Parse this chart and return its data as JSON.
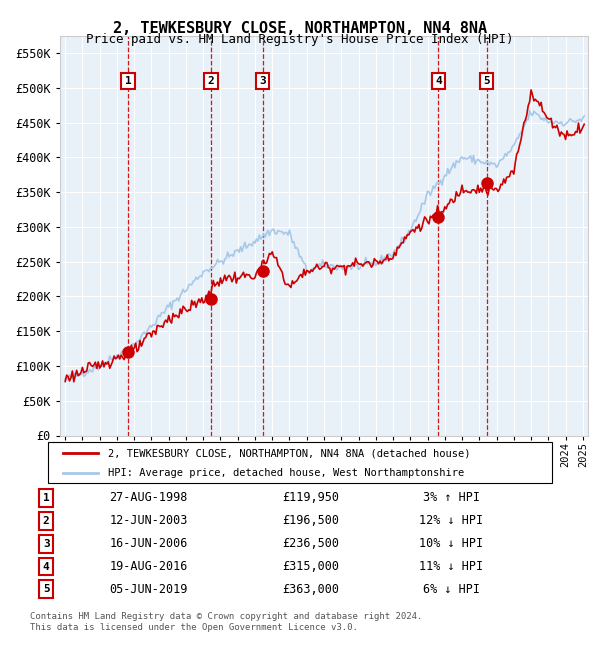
{
  "title": "2, TEWKESBURY CLOSE, NORTHAMPTON, NN4 8NA",
  "subtitle": "Price paid vs. HM Land Registry's House Price Index (HPI)",
  "legend_line1": "2, TEWKESBURY CLOSE, NORTHAMPTON, NN4 8NA (detached house)",
  "legend_line2": "HPI: Average price, detached house, West Northamptonshire",
  "footer1": "Contains HM Land Registry data © Crown copyright and database right 2024.",
  "footer2": "This data is licensed under the Open Government Licence v3.0.",
  "transactions": [
    {
      "num": 1,
      "date": "27-AUG-1998",
      "price": 119950,
      "pct": "3%",
      "dir": "↑",
      "year": 1998.65
    },
    {
      "num": 2,
      "date": "12-JUN-2003",
      "price": 196500,
      "pct": "12%",
      "dir": "↓",
      "year": 2003.44
    },
    {
      "num": 3,
      "date": "16-JUN-2006",
      "price": 236500,
      "pct": "10%",
      "dir": "↓",
      "year": 2006.44
    },
    {
      "num": 4,
      "date": "19-AUG-2016",
      "price": 315000,
      "pct": "11%",
      "dir": "↓",
      "year": 2016.63
    },
    {
      "num": 5,
      "date": "05-JUN-2019",
      "price": 363000,
      "pct": "6%",
      "dir": "↓",
      "year": 2019.42
    }
  ],
  "hpi_color": "#a8c8e8",
  "price_color": "#cc0000",
  "bg_color": "#e8f0f8",
  "grid_color": "#ffffff",
  "ylim": [
    0,
    575000
  ],
  "yticks": [
    0,
    50000,
    100000,
    150000,
    200000,
    250000,
    300000,
    350000,
    400000,
    450000,
    500000,
    550000
  ],
  "xlim_start": 1994.7,
  "xlim_end": 2025.3
}
